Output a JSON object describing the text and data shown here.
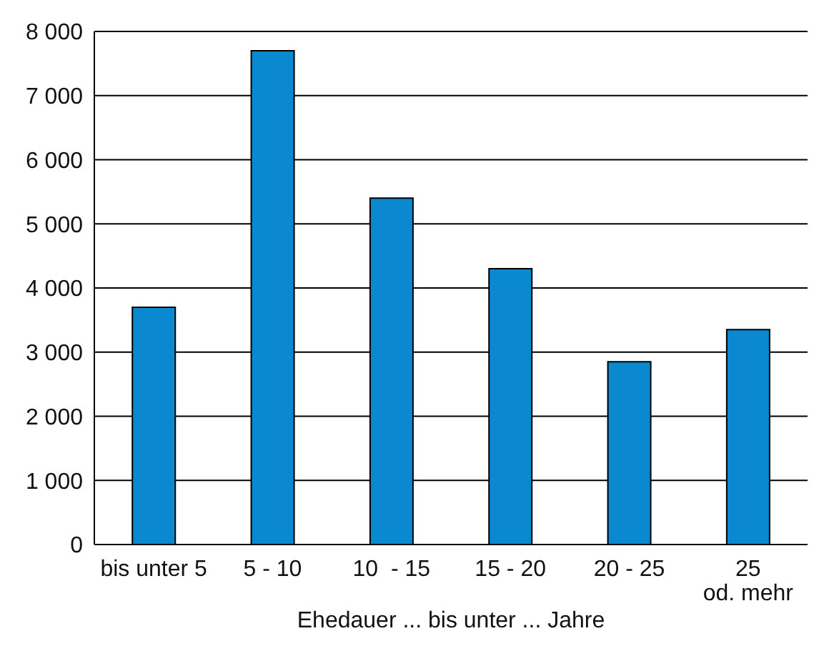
{
  "chart_data": {
    "type": "bar",
    "xlabel": "Ehedauer ... bis unter ... Jahre",
    "categories": [
      "bis unter 5",
      "5 - 10",
      "10  - 15",
      "15 - 20",
      "20 - 25",
      "25\nod. mehr"
    ],
    "values": [
      3700,
      7700,
      5400,
      4300,
      2850,
      3350
    ],
    "color": "#0a88d0",
    "ylim": [
      0,
      8000
    ],
    "yticks": [
      {
        "value": 0,
        "label": "0"
      },
      {
        "value": 1000,
        "label": "1 000"
      },
      {
        "value": 2000,
        "label": "2 000"
      },
      {
        "value": 3000,
        "label": "3 000"
      },
      {
        "value": 4000,
        "label": "4 000"
      },
      {
        "value": 5000,
        "label": "5 000"
      },
      {
        "value": 6000,
        "label": "6 000"
      },
      {
        "value": 7000,
        "label": "7 000"
      },
      {
        "value": 8000,
        "label": "8 000"
      }
    ],
    "grid": "y"
  }
}
